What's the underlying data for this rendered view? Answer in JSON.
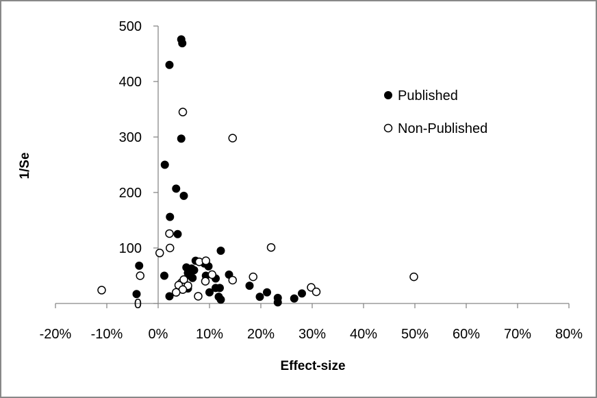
{
  "chart_data": {
    "type": "scatter",
    "title": "",
    "xlabel": "Effect-size",
    "ylabel": "1/Se",
    "xlim": [
      -0.2,
      0.8
    ],
    "ylim": [
      0,
      500
    ],
    "x_ticks": [
      -0.2,
      -0.1,
      0,
      0.1,
      0.2,
      0.3,
      0.4,
      0.5,
      0.6,
      0.7,
      0.8
    ],
    "x_tick_labels": [
      "-20%",
      "-10%",
      "0%",
      "10%",
      "20%",
      "30%",
      "40%",
      "50%",
      "60%",
      "70%",
      "80%"
    ],
    "y_ticks": [
      0,
      100,
      200,
      300,
      400,
      500
    ],
    "y_tick_labels": [
      "0",
      "100",
      "200",
      "300",
      "400",
      "500"
    ],
    "grid": false,
    "legend_position": "top-right",
    "series": [
      {
        "name": "Published",
        "marker": "filled-circle",
        "color": "#000000",
        "points": [
          [
            0.045,
            476
          ],
          [
            0.047,
            469
          ],
          [
            0.022,
            430
          ],
          [
            0.045,
            297
          ],
          [
            0.013,
            250
          ],
          [
            0.035,
            207
          ],
          [
            0.05,
            194
          ],
          [
            0.023,
            156
          ],
          [
            0.038,
            125
          ],
          [
            0.122,
            95
          ],
          [
            0.073,
            77
          ],
          [
            0.055,
            65
          ],
          [
            0.06,
            62
          ],
          [
            0.065,
            63
          ],
          [
            0.07,
            60
          ],
          [
            0.09,
            72
          ],
          [
            0.098,
            67
          ],
          [
            0.058,
            55
          ],
          [
            0.063,
            50
          ],
          [
            0.093,
            50
          ],
          [
            0.138,
            52
          ],
          [
            0.112,
            45
          ],
          [
            0.067,
            46
          ],
          [
            0.058,
            27
          ],
          [
            0.112,
            28
          ],
          [
            0.12,
            28
          ],
          [
            0.1,
            20
          ],
          [
            0.118,
            12
          ],
          [
            0.122,
            7
          ],
          [
            0.022,
            13
          ],
          [
            0.012,
            50
          ],
          [
            -0.037,
            68
          ],
          [
            -0.042,
            17
          ],
          [
            0.178,
            32
          ],
          [
            0.212,
            20
          ],
          [
            0.198,
            12
          ],
          [
            0.233,
            10
          ],
          [
            0.233,
            2
          ],
          [
            0.265,
            9
          ],
          [
            0.28,
            18
          ]
        ]
      },
      {
        "name": "Non-Published",
        "marker": "open-circle",
        "color": "#000000",
        "points": [
          [
            0.048,
            345
          ],
          [
            0.145,
            298
          ],
          [
            0.022,
            126
          ],
          [
            0.023,
            100
          ],
          [
            0.003,
            91
          ],
          [
            0.22,
            101
          ],
          [
            0.08,
            75
          ],
          [
            0.093,
            77
          ],
          [
            0.045,
            37
          ],
          [
            0.05,
            43
          ],
          [
            0.105,
            52
          ],
          [
            0.145,
            42
          ],
          [
            0.185,
            48
          ],
          [
            0.092,
            40
          ],
          [
            0.04,
            33
          ],
          [
            0.058,
            32
          ],
          [
            0.048,
            25
          ],
          [
            0.035,
            20
          ],
          [
            0.078,
            13
          ],
          [
            -0.035,
            50
          ],
          [
            -0.11,
            24
          ],
          [
            0.298,
            29
          ],
          [
            0.308,
            21
          ],
          [
            0.498,
            48
          ]
        ]
      }
    ]
  }
}
